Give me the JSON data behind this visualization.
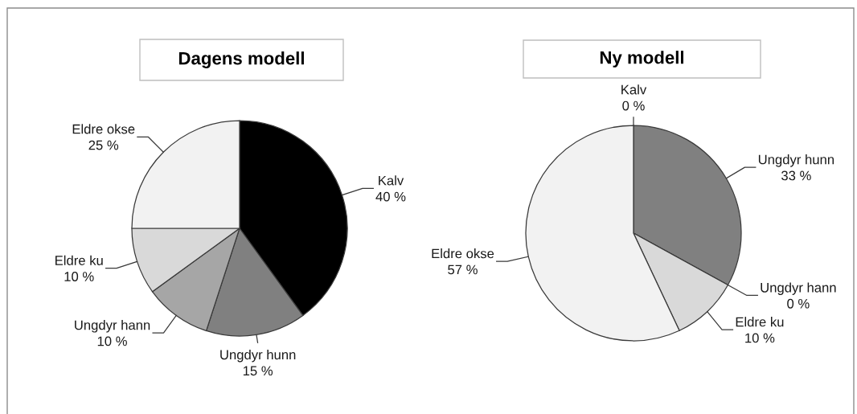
{
  "chart_data": [
    {
      "type": "pie",
      "title": "Dagens modell",
      "categories": [
        "Kalv",
        "Ungdyr hunn",
        "Ungdyr hann",
        "Eldre ku",
        "Eldre okse"
      ],
      "values": [
        40,
        15,
        10,
        10,
        25
      ],
      "colors": [
        "#000000",
        "#808080",
        "#a6a6a6",
        "#d9d9d9",
        "#f2f2f2"
      ],
      "value_labels": [
        "40 %",
        "15 %",
        "10 %",
        "10 %",
        "25 %"
      ]
    },
    {
      "type": "pie",
      "title": "Ny modell",
      "categories": [
        "Kalv",
        "Ungdyr hunn",
        "Ungdyr hann",
        "Eldre ku",
        "Eldre okse"
      ],
      "values": [
        0,
        33,
        0,
        10,
        57
      ],
      "colors": [
        "#000000",
        "#808080",
        "#a6a6a6",
        "#d9d9d9",
        "#f2f2f2"
      ],
      "value_labels": [
        "0 %",
        "33 %",
        "0 %",
        "10 %",
        "57 %"
      ]
    }
  ]
}
